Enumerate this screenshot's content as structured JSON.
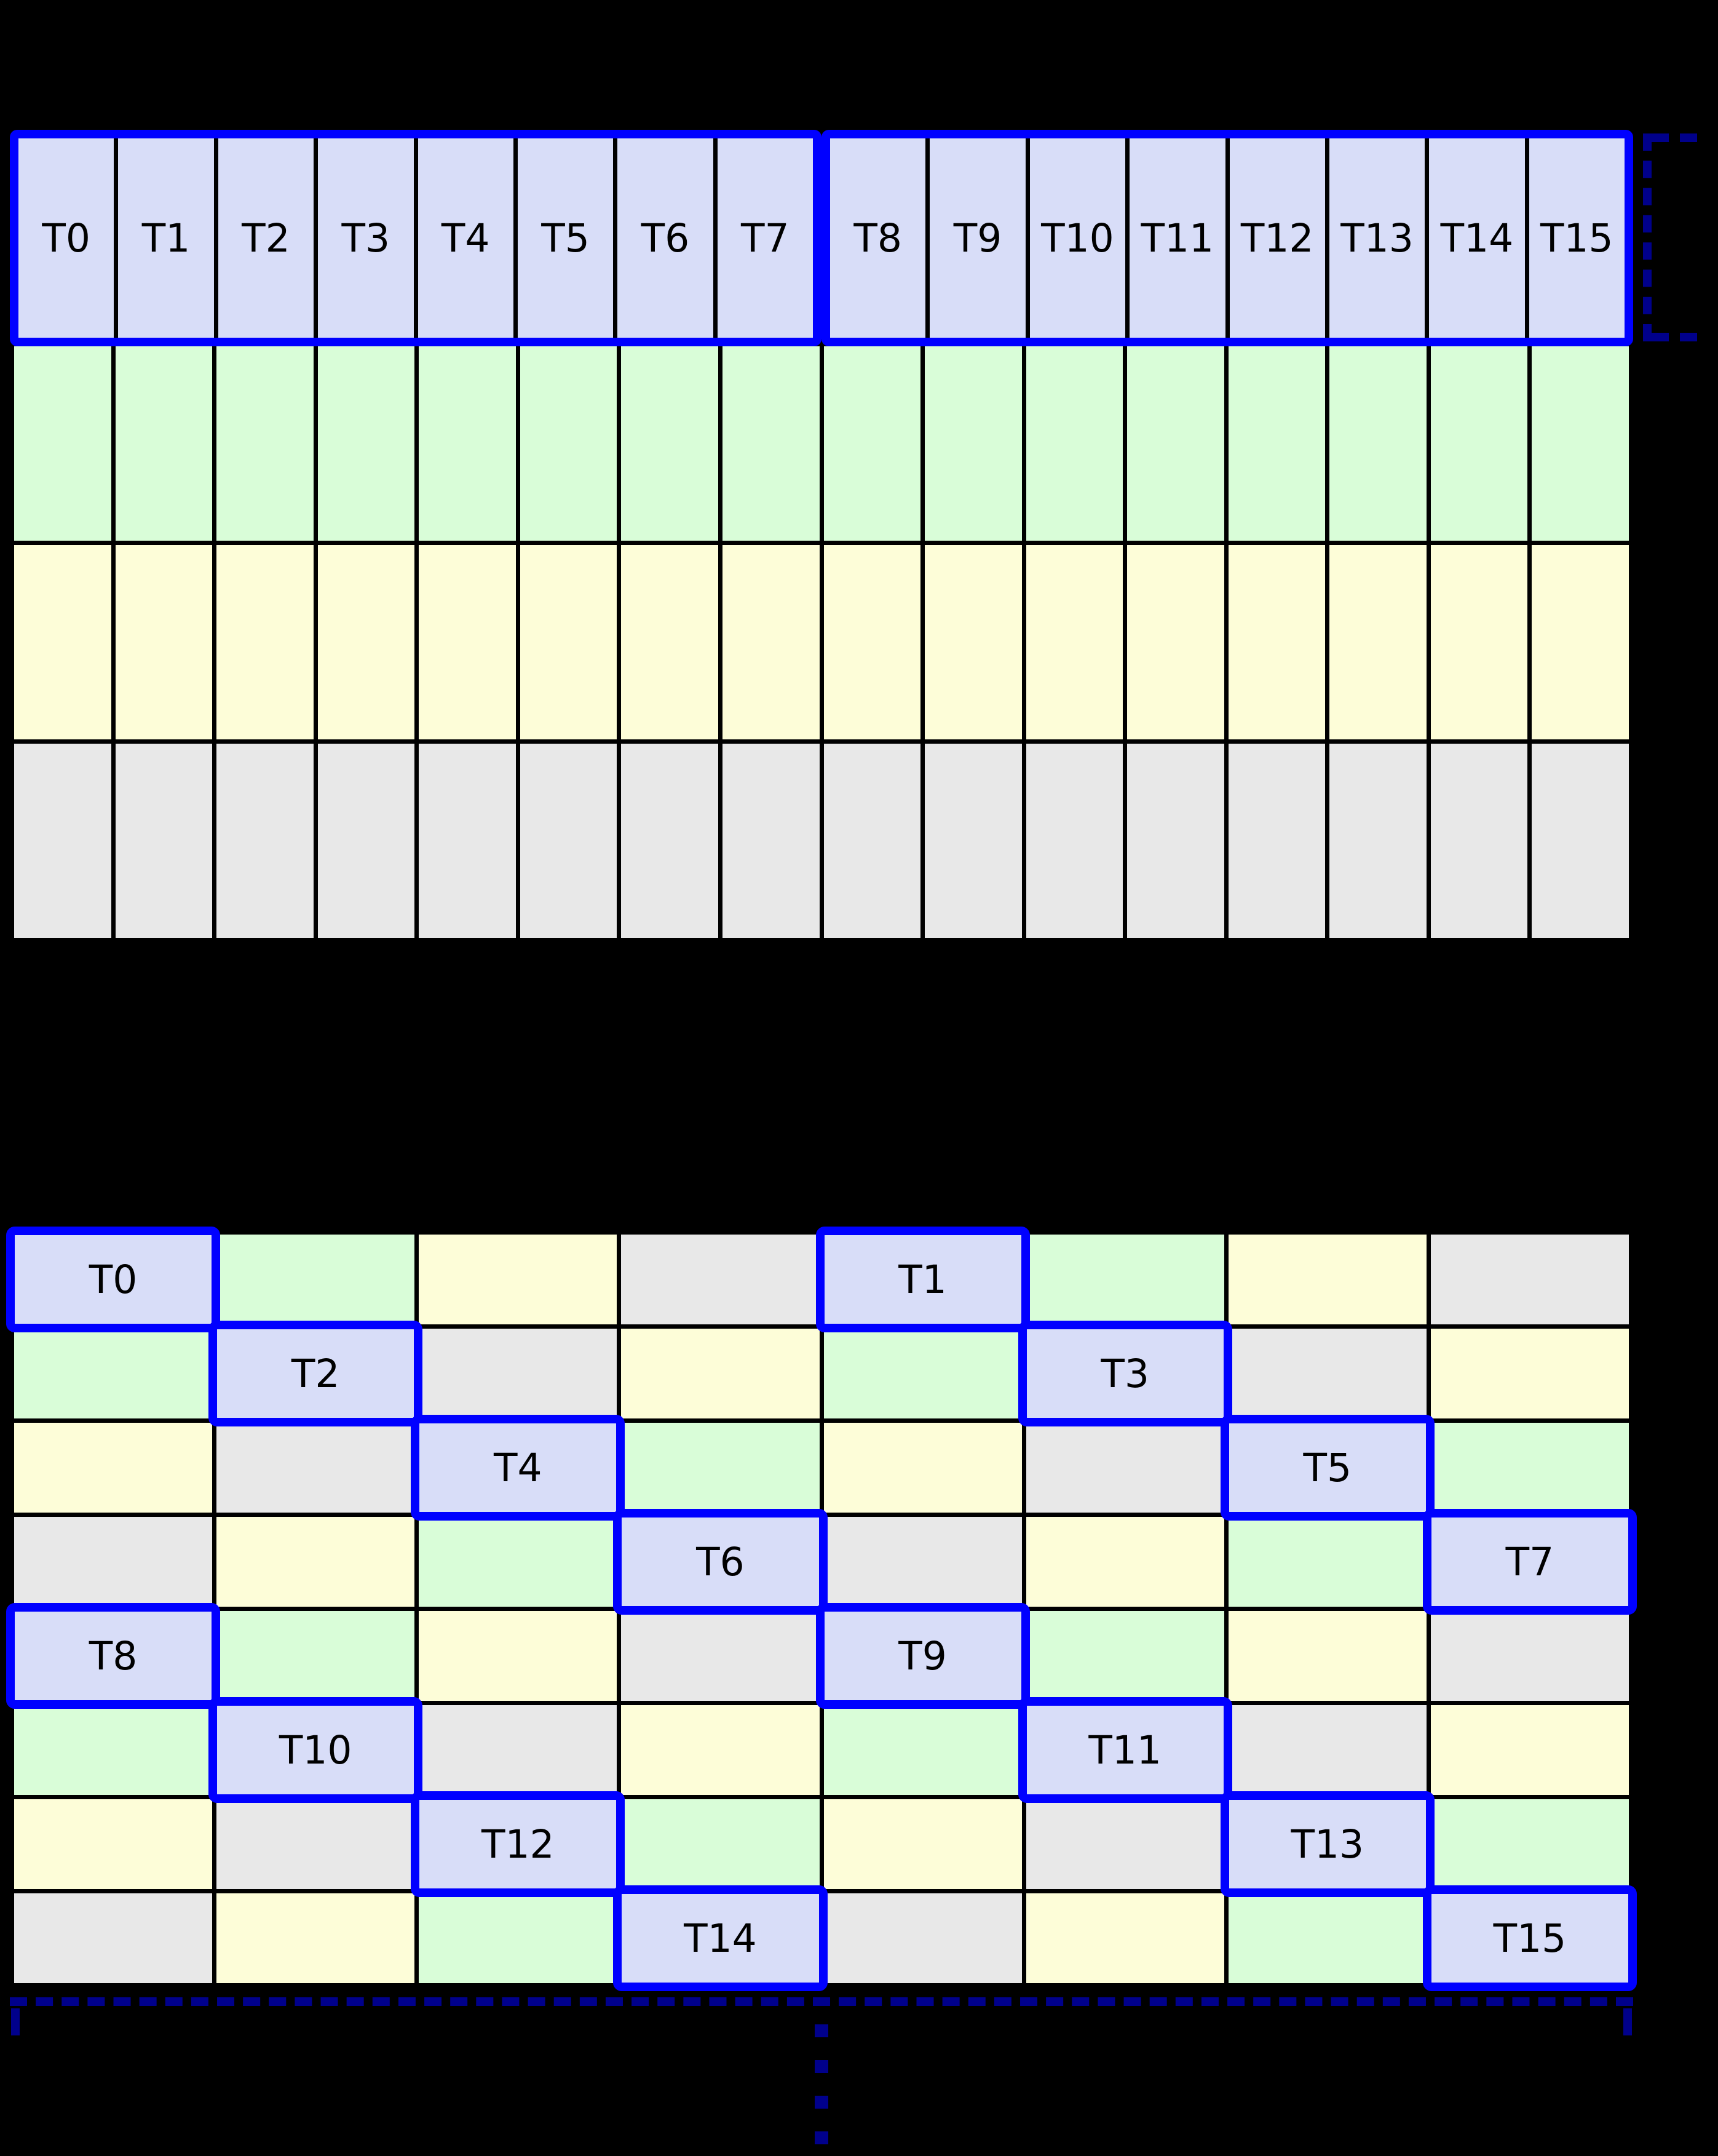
{
  "palette": {
    "background": "#000000",
    "highlight_blue": "#0000ff",
    "bracket_navy": "#00008b",
    "cell_blue": "#d8ddf8",
    "cell_green": "#d9fdd8",
    "cell_yellow": "#fdfdd8",
    "cell_gray": "#e8e8e8",
    "label_color": "#000000"
  },
  "top_grid": {
    "columns": 16,
    "warp_groups": [
      {
        "threads": [
          "T0",
          "T1",
          "T2",
          "T3",
          "T4",
          "T5",
          "T6",
          "T7"
        ]
      },
      {
        "threads": [
          "T8",
          "T9",
          "T10",
          "T11",
          "T12",
          "T13",
          "T14",
          "T15"
        ]
      }
    ],
    "memory_rows": [
      "green",
      "yellow",
      "gray"
    ]
  },
  "bottom_grid": {
    "columns": 8,
    "rows": [
      {
        "cells": [
          {
            "color": "blue",
            "label": "T0"
          },
          {
            "color": "green"
          },
          {
            "color": "yellow"
          },
          {
            "color": "gray"
          },
          {
            "color": "blue",
            "label": "T1"
          },
          {
            "color": "green"
          },
          {
            "color": "yellow"
          },
          {
            "color": "gray"
          }
        ]
      },
      {
        "cells": [
          {
            "color": "green"
          },
          {
            "color": "blue",
            "label": "T2"
          },
          {
            "color": "gray"
          },
          {
            "color": "yellow"
          },
          {
            "color": "green"
          },
          {
            "color": "blue",
            "label": "T3"
          },
          {
            "color": "gray"
          },
          {
            "color": "yellow"
          }
        ]
      },
      {
        "cells": [
          {
            "color": "yellow"
          },
          {
            "color": "gray"
          },
          {
            "color": "blue",
            "label": "T4"
          },
          {
            "color": "green"
          },
          {
            "color": "yellow"
          },
          {
            "color": "gray"
          },
          {
            "color": "blue",
            "label": "T5"
          },
          {
            "color": "green"
          }
        ]
      },
      {
        "cells": [
          {
            "color": "gray"
          },
          {
            "color": "yellow"
          },
          {
            "color": "green"
          },
          {
            "color": "blue",
            "label": "T6"
          },
          {
            "color": "gray"
          },
          {
            "color": "yellow"
          },
          {
            "color": "green"
          },
          {
            "color": "blue",
            "label": "T7"
          }
        ]
      },
      {
        "cells": [
          {
            "color": "blue",
            "label": "T8"
          },
          {
            "color": "green"
          },
          {
            "color": "yellow"
          },
          {
            "color": "gray"
          },
          {
            "color": "blue",
            "label": "T9"
          },
          {
            "color": "green"
          },
          {
            "color": "yellow"
          },
          {
            "color": "gray"
          }
        ]
      },
      {
        "cells": [
          {
            "color": "green"
          },
          {
            "color": "blue",
            "label": "T10"
          },
          {
            "color": "gray"
          },
          {
            "color": "yellow"
          },
          {
            "color": "green"
          },
          {
            "color": "blue",
            "label": "T11"
          },
          {
            "color": "gray"
          },
          {
            "color": "yellow"
          }
        ]
      },
      {
        "cells": [
          {
            "color": "yellow"
          },
          {
            "color": "gray"
          },
          {
            "color": "blue",
            "label": "T12"
          },
          {
            "color": "green"
          },
          {
            "color": "yellow"
          },
          {
            "color": "gray"
          },
          {
            "color": "blue",
            "label": "T13"
          },
          {
            "color": "green"
          }
        ]
      },
      {
        "cells": [
          {
            "color": "gray"
          },
          {
            "color": "yellow"
          },
          {
            "color": "green"
          },
          {
            "color": "blue",
            "label": "T14"
          },
          {
            "color": "gray"
          },
          {
            "color": "yellow"
          },
          {
            "color": "green"
          },
          {
            "color": "blue",
            "label": "T15"
          }
        ]
      }
    ]
  },
  "ellipsis": {
    "dash_count": 4
  }
}
